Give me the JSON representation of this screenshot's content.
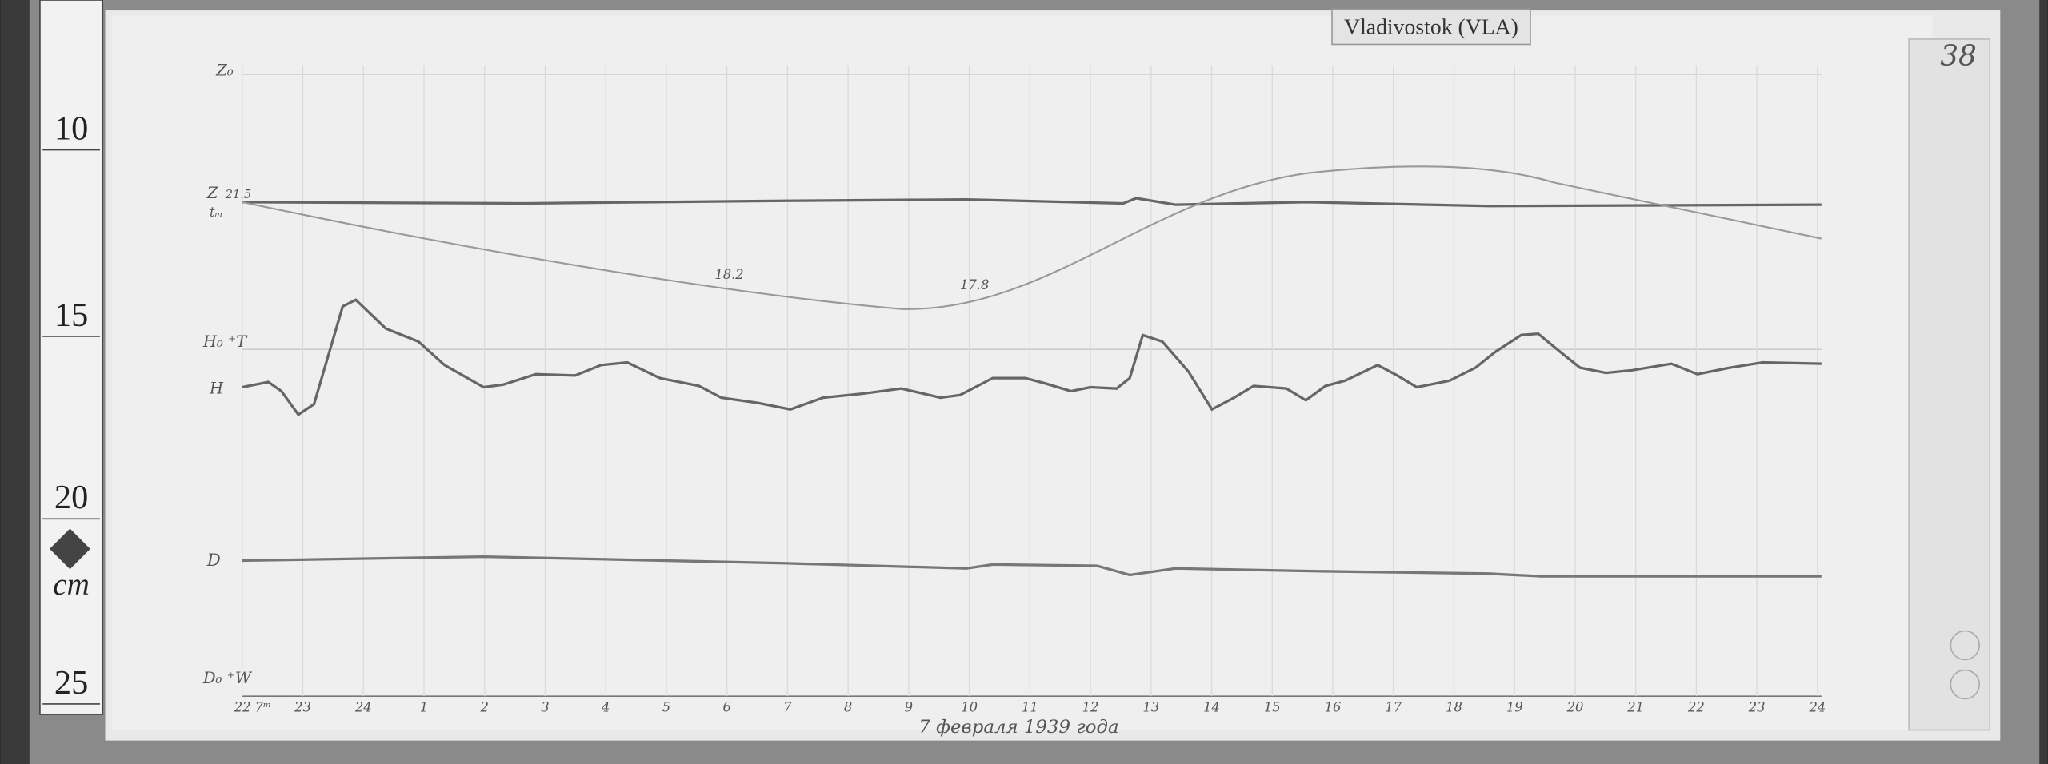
{
  "label_tag": "Vladivostok (VLA)",
  "page_number": "38",
  "ruler": {
    "marks": [
      "10",
      "15",
      "20",
      "25"
    ],
    "unit": "cm"
  },
  "trace_labels": {
    "z0": "Z₀",
    "z": "Z",
    "z_value": "21.5",
    "t": "tₘ",
    "h0": "H₀ ⁺T",
    "h": "H",
    "d": "D",
    "d0": "D₀ ⁺W"
  },
  "annotations": [
    "18.2",
    "17.8"
  ],
  "hour_labels": [
    "22 7ᵐ",
    "23",
    "24",
    "1",
    "2",
    "3",
    "4",
    "5",
    "6",
    "7",
    "8",
    "9",
    "10",
    "11",
    "12",
    "13",
    "14",
    "15",
    "16",
    "17",
    "18",
    "19",
    "20",
    "21",
    "22",
    "23",
    "24"
  ],
  "caption": "7 февраля 1939 года"
}
